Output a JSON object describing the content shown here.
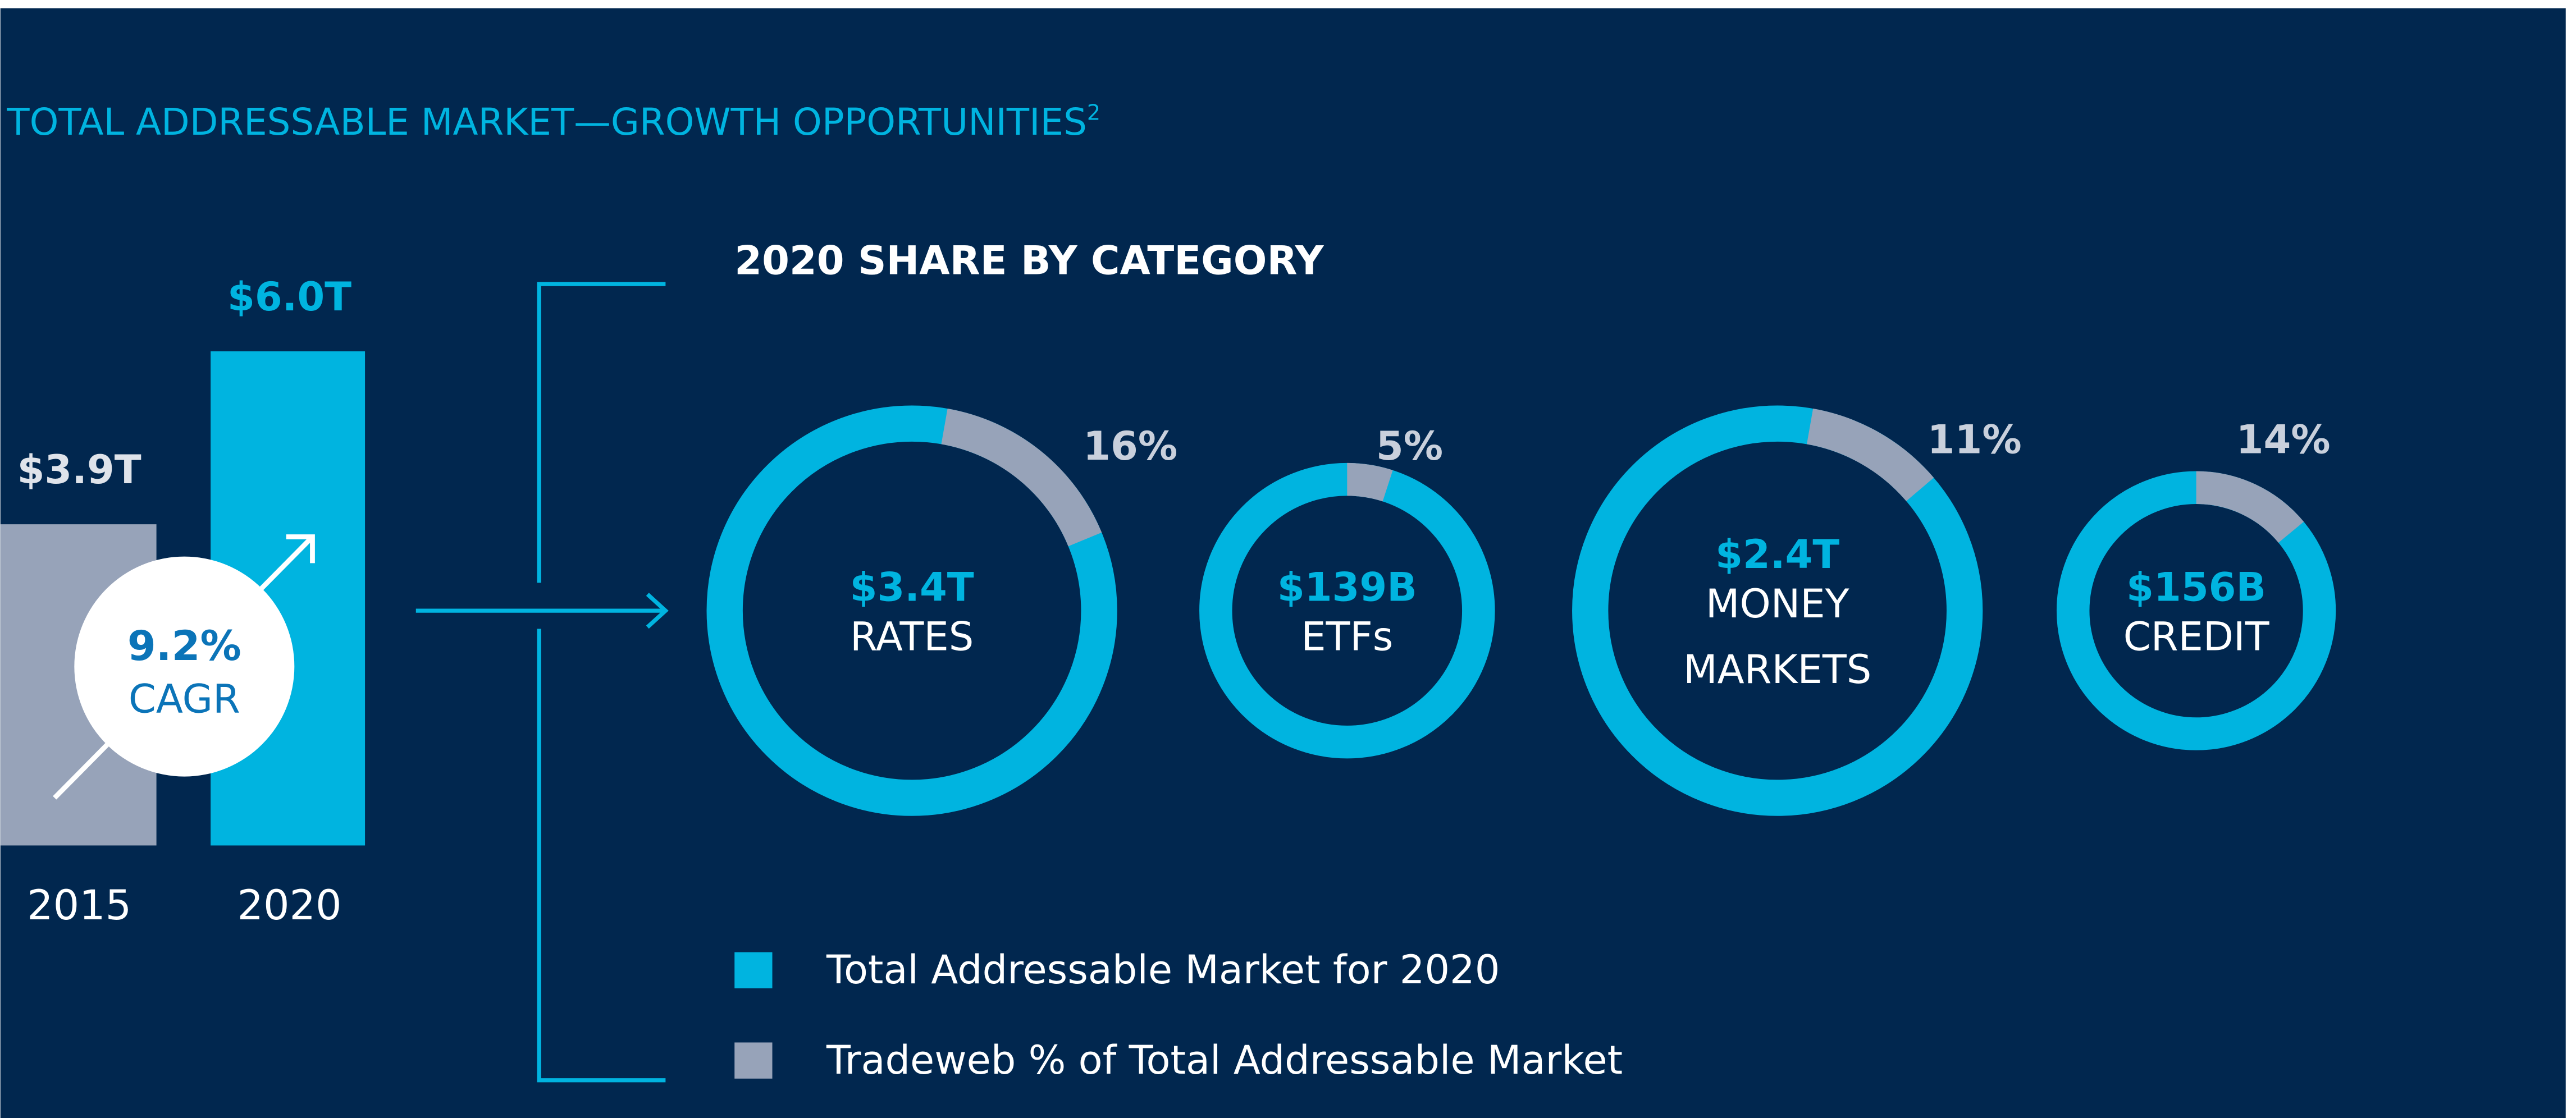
{
  "title": "TOTAL ADDRESSABLE MARKET—GROWTH OPPORTUNITIES",
  "title_footnote": "2",
  "colors": {
    "background": "#01274f",
    "accent": "#00b4e0",
    "grey": "#97a3b9",
    "white": "#ffffff",
    "cagr_text": "#0b74b8"
  },
  "chart_data": [
    {
      "type": "bar",
      "categories": [
        "2015",
        "2020"
      ],
      "values": [
        3.9,
        6.0
      ],
      "value_labels": [
        "$3.9T",
        "$6.0T"
      ],
      "unit": "T",
      "annotation": {
        "value": "9.2%",
        "label": "CAGR"
      }
    },
    {
      "type": "pie",
      "variant": "donut",
      "title": "2020 SHARE BY CATEGORY",
      "items": [
        {
          "category": "RATES",
          "category_lines": [
            "RATES"
          ],
          "total_label": "$3.4T",
          "total": 3400,
          "tradeweb_share_pct": 16,
          "share_label": "16%"
        },
        {
          "category": "ETFs",
          "category_lines": [
            "ETFs"
          ],
          "total_label": "$139B",
          "total": 139,
          "tradeweb_share_pct": 5,
          "share_label": "5%"
        },
        {
          "category": "MONEY MARKETS",
          "category_lines": [
            "MONEY",
            "MARKETS"
          ],
          "total_label": "$2.4T",
          "total": 2400,
          "tradeweb_share_pct": 11,
          "share_label": "11%"
        },
        {
          "category": "CREDIT",
          "category_lines": [
            "CREDIT"
          ],
          "total_label": "$156B",
          "total": 156,
          "tradeweb_share_pct": 14,
          "share_label": "14%"
        }
      ],
      "unit_of_total": "$B",
      "legend": [
        {
          "label": "Total Addressable Market for 2020",
          "color": "#00b4e0"
        },
        {
          "label": "Tradeweb % of Total Addressable Market",
          "color": "#97a3b9"
        }
      ],
      "legend_position": "bottom"
    }
  ]
}
